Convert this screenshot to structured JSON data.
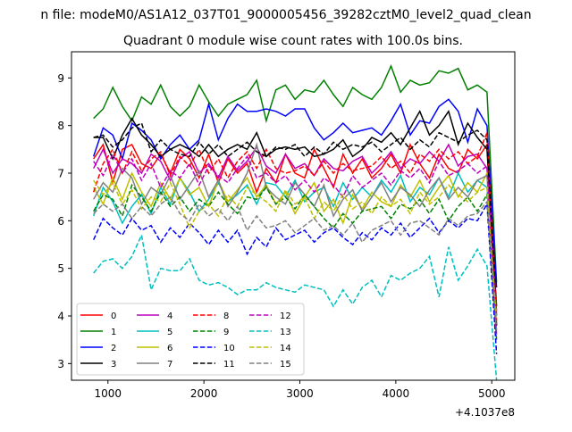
{
  "suptitle": "n file: modeM0/AS1A12_037T01_9000005456_39282cztM0_level2_quad_clean",
  "chart_data": {
    "type": "line",
    "title": "Quadrant 0 module wise count rates with 100.0s bins.",
    "xlabel": "",
    "ylabel": "",
    "x_offset_label": "+4.1037e8",
    "xlim": [
      620,
      5240
    ],
    "ylim": [
      2.65,
      9.55
    ],
    "xticks": [
      1000,
      2000,
      3000,
      4000,
      5000
    ],
    "yticks": [
      3,
      4,
      5,
      6,
      7,
      8,
      9
    ],
    "grid": false,
    "legend": {
      "placement": "lower-left",
      "ncol": 4
    },
    "x": [
      850,
      950,
      1050,
      1150,
      1250,
      1350,
      1450,
      1550,
      1650,
      1750,
      1850,
      1950,
      2050,
      2150,
      2250,
      2350,
      2450,
      2550,
      2650,
      2750,
      2850,
      2950,
      3050,
      3150,
      3250,
      3350,
      3450,
      3550,
      3650,
      3750,
      3850,
      3950,
      4050,
      4150,
      4250,
      4350,
      4450,
      4550,
      4650,
      4750,
      4850,
      4950,
      5050
    ],
    "series": [
      {
        "name": "0",
        "color": "#ff0000",
        "dash": false,
        "values": [
          7.3,
          7.6,
          6.8,
          7.5,
          7.6,
          7.2,
          7.1,
          7.4,
          7.0,
          7.5,
          7.3,
          6.9,
          7.4,
          6.8,
          7.3,
          7.0,
          7.2,
          6.6,
          7.1,
          6.8,
          7.4,
          7.0,
          6.9,
          7.5,
          7.1,
          6.7,
          7.4,
          7.0,
          7.3,
          6.9,
          7.1,
          7.4,
          7.0,
          7.6,
          7.2,
          6.9,
          7.4,
          7.1,
          7.0,
          7.5,
          7.3,
          7.6,
          4.0
        ]
      },
      {
        "name": "1",
        "color": "#008000",
        "dash": false,
        "values": [
          8.15,
          8.35,
          8.8,
          8.4,
          8.1,
          8.6,
          8.45,
          8.85,
          8.4,
          8.2,
          8.4,
          8.85,
          8.5,
          8.2,
          8.45,
          8.55,
          8.65,
          8.95,
          8.1,
          8.75,
          8.85,
          8.55,
          8.75,
          8.7,
          8.95,
          8.65,
          8.4,
          8.8,
          8.65,
          8.55,
          8.8,
          9.25,
          8.7,
          8.95,
          8.85,
          8.9,
          9.15,
          9.1,
          9.2,
          8.75,
          8.85,
          8.7,
          4.7
        ]
      },
      {
        "name": "2",
        "color": "#0000ff",
        "dash": false,
        "values": [
          7.35,
          7.95,
          7.8,
          7.3,
          8.05,
          7.9,
          7.7,
          7.3,
          7.6,
          7.8,
          7.5,
          7.7,
          8.45,
          7.7,
          8.15,
          8.45,
          8.3,
          8.3,
          8.35,
          8.3,
          8.2,
          8.35,
          8.35,
          7.95,
          7.7,
          7.85,
          8.05,
          7.85,
          7.9,
          7.95,
          7.8,
          8.1,
          8.45,
          7.8,
          8.1,
          8.05,
          8.4,
          8.55,
          8.3,
          7.65,
          8.35,
          8.0,
          4.6
        ]
      },
      {
        "name": "3",
        "color": "#000000",
        "dash": false,
        "values": [
          7.75,
          7.75,
          7.3,
          7.8,
          8.15,
          7.8,
          7.6,
          7.35,
          7.5,
          7.6,
          7.5,
          7.35,
          7.6,
          7.35,
          7.5,
          7.6,
          7.5,
          7.85,
          7.35,
          7.5,
          7.55,
          7.5,
          7.55,
          7.35,
          7.4,
          7.5,
          7.7,
          7.35,
          7.5,
          7.75,
          7.65,
          7.85,
          7.6,
          7.95,
          8.3,
          7.8,
          8.0,
          8.3,
          7.6,
          8.05,
          7.75,
          7.5,
          4.2
        ]
      },
      {
        "name": "4",
        "color": "#bf00bf",
        "dash": false,
        "values": [
          7.1,
          7.5,
          7.0,
          7.3,
          7.2,
          7.0,
          7.4,
          7.25,
          6.85,
          7.3,
          7.45,
          7.0,
          7.2,
          6.9,
          7.35,
          7.05,
          7.25,
          7.55,
          7.15,
          7.0,
          7.4,
          7.1,
          7.2,
          6.95,
          7.3,
          7.1,
          7.05,
          7.25,
          7.35,
          7.0,
          7.2,
          7.45,
          7.1,
          7.3,
          7.2,
          7.45,
          7.25,
          7.6,
          7.15,
          7.35,
          7.4,
          7.1,
          4.1
        ]
      },
      {
        "name": "5",
        "color": "#00bfbf",
        "dash": false,
        "values": [
          6.1,
          6.7,
          6.4,
          5.95,
          6.3,
          6.55,
          6.15,
          6.7,
          6.35,
          6.9,
          6.6,
          6.2,
          6.45,
          6.8,
          6.4,
          6.55,
          6.75,
          6.35,
          6.8,
          6.75,
          6.5,
          6.85,
          6.4,
          6.6,
          6.7,
          6.3,
          6.8,
          6.45,
          6.7,
          6.5,
          6.85,
          6.6,
          6.95,
          6.4,
          6.7,
          6.55,
          6.9,
          6.5,
          7.0,
          6.6,
          6.85,
          6.7,
          4.0
        ]
      },
      {
        "name": "6",
        "color": "#bfbf00",
        "dash": false,
        "values": [
          6.7,
          6.35,
          6.9,
          6.45,
          7.0,
          6.6,
          6.3,
          6.8,
          6.45,
          6.9,
          6.55,
          6.7,
          6.3,
          6.85,
          6.4,
          6.65,
          6.9,
          6.5,
          6.75,
          6.35,
          6.6,
          6.15,
          6.5,
          6.8,
          6.2,
          6.45,
          5.95,
          6.55,
          6.25,
          6.6,
          6.4,
          6.3,
          6.75,
          6.5,
          6.85,
          6.4,
          6.7,
          6.95,
          6.5,
          6.8,
          6.6,
          7.0,
          3.9
        ]
      },
      {
        "name": "7",
        "color": "#808080",
        "dash": false,
        "values": [
          6.45,
          6.8,
          6.6,
          7.1,
          6.9,
          6.35,
          6.7,
          6.55,
          6.95,
          6.45,
          6.75,
          7.05,
          6.5,
          6.85,
          6.3,
          6.6,
          7.0,
          7.6,
          6.7,
          6.5,
          6.35,
          6.8,
          6.55,
          6.3,
          6.75,
          6.1,
          6.45,
          6.65,
          6.2,
          6.5,
          6.8,
          6.4,
          6.7,
          6.55,
          6.3,
          6.65,
          6.9,
          6.45,
          6.7,
          6.5,
          6.85,
          6.95,
          3.8
        ]
      },
      {
        "name": "8",
        "color": "#ff0000",
        "dash": true,
        "values": [
          6.6,
          7.2,
          7.5,
          7.0,
          7.45,
          7.05,
          7.3,
          7.45,
          6.95,
          7.35,
          7.15,
          7.5,
          7.0,
          7.3,
          6.9,
          7.25,
          7.45,
          7.1,
          7.5,
          7.1,
          7.0,
          7.05,
          7.15,
          6.95,
          7.25,
          7.0,
          7.2,
          7.05,
          7.1,
          7.15,
          7.35,
          7.1,
          7.25,
          7.0,
          7.4,
          7.25,
          7.5,
          7.3,
          7.45,
          7.2,
          7.35,
          7.85,
          3.9
        ]
      },
      {
        "name": "9",
        "color": "#008000",
        "dash": true,
        "values": [
          6.2,
          6.55,
          6.45,
          6.1,
          6.75,
          6.5,
          6.2,
          6.6,
          6.3,
          6.5,
          6.2,
          6.45,
          6.3,
          6.6,
          6.35,
          6.15,
          6.5,
          6.45,
          6.7,
          6.35,
          6.5,
          6.25,
          6.55,
          6.3,
          6.05,
          5.85,
          6.15,
          5.95,
          6.2,
          6.25,
          6.3,
          6.05,
          6.35,
          6.25,
          6.45,
          6.15,
          6.45,
          6.0,
          6.3,
          6.5,
          6.2,
          6.55,
          3.5
        ]
      },
      {
        "name": "10",
        "color": "#0000ff",
        "dash": true,
        "values": [
          5.6,
          6.05,
          5.85,
          5.7,
          6.05,
          5.8,
          5.9,
          5.55,
          5.85,
          5.65,
          5.95,
          5.75,
          5.5,
          5.8,
          5.55,
          5.8,
          5.3,
          5.65,
          5.45,
          5.85,
          5.6,
          5.7,
          5.8,
          5.55,
          5.75,
          5.85,
          5.65,
          5.5,
          5.75,
          5.6,
          5.85,
          5.7,
          5.95,
          5.65,
          5.85,
          6.05,
          5.75,
          6.0,
          5.85,
          6.05,
          6.0,
          6.35,
          3.2
        ]
      },
      {
        "name": "11",
        "color": "#000000",
        "dash": true,
        "values": [
          7.75,
          7.8,
          7.55,
          7.7,
          7.95,
          8.05,
          7.45,
          7.7,
          7.5,
          7.4,
          7.35,
          7.65,
          7.4,
          7.6,
          7.35,
          7.5,
          7.65,
          7.45,
          7.35,
          7.55,
          7.5,
          7.6,
          7.35,
          7.55,
          7.4,
          7.65,
          7.5,
          7.6,
          7.55,
          7.65,
          7.45,
          7.6,
          7.75,
          7.5,
          7.7,
          7.55,
          7.85,
          7.75,
          7.65,
          7.8,
          7.9,
          7.7,
          3.8
        ]
      },
      {
        "name": "12",
        "color": "#bf00bf",
        "dash": true,
        "values": [
          7.25,
          6.95,
          7.4,
          7.0,
          7.3,
          6.85,
          7.2,
          6.7,
          7.05,
          6.9,
          7.2,
          6.75,
          7.15,
          6.95,
          6.8,
          7.1,
          7.35,
          6.9,
          7.0,
          6.8,
          6.95,
          6.65,
          6.85,
          6.6,
          6.9,
          6.75,
          6.5,
          6.95,
          6.7,
          6.85,
          7.0,
          6.75,
          7.05,
          6.9,
          7.1,
          6.8,
          7.25,
          6.95,
          7.05,
          7.2,
          7.0,
          7.15,
          3.6
        ]
      },
      {
        "name": "13",
        "color": "#00bfbf",
        "dash": true,
        "values": [
          4.9,
          5.15,
          5.2,
          5.0,
          5.25,
          5.7,
          4.55,
          5.0,
          4.95,
          4.95,
          5.2,
          4.75,
          4.65,
          4.7,
          4.6,
          4.45,
          4.55,
          4.55,
          4.7,
          4.6,
          4.55,
          4.5,
          4.65,
          4.6,
          4.55,
          4.2,
          4.55,
          4.25,
          4.6,
          4.75,
          4.4,
          4.85,
          4.75,
          4.9,
          5.0,
          5.25,
          4.4,
          5.45,
          4.75,
          5.05,
          5.4,
          5.05,
          2.65
        ]
      },
      {
        "name": "14",
        "color": "#bfbf00",
        "dash": true,
        "values": [
          6.85,
          6.55,
          6.8,
          6.35,
          6.65,
          6.25,
          6.5,
          6.4,
          6.8,
          6.35,
          5.85,
          6.2,
          6.35,
          6.1,
          6.55,
          6.3,
          6.7,
          6.55,
          6.4,
          6.2,
          6.65,
          6.35,
          6.5,
          6.05,
          6.4,
          6.2,
          6.55,
          6.25,
          6.4,
          6.15,
          6.5,
          6.3,
          6.45,
          6.15,
          6.6,
          6.35,
          6.5,
          6.75,
          6.55,
          6.4,
          6.6,
          6.7,
          3.9
        ]
      },
      {
        "name": "15",
        "color": "#808080",
        "dash": true,
        "values": [
          6.15,
          6.35,
          6.2,
          6.35,
          6.05,
          6.3,
          6.1,
          6.35,
          6.5,
          6.15,
          6.0,
          6.35,
          6.1,
          6.25,
          6.0,
          6.3,
          5.8,
          6.1,
          5.85,
          5.9,
          6.0,
          5.75,
          5.9,
          6.05,
          5.8,
          5.9,
          5.7,
          5.95,
          5.55,
          5.8,
          5.9,
          6.0,
          5.7,
          5.95,
          6.0,
          5.85,
          5.7,
          6.05,
          5.9,
          6.1,
          6.15,
          6.4,
          3.7
        ]
      }
    ]
  }
}
